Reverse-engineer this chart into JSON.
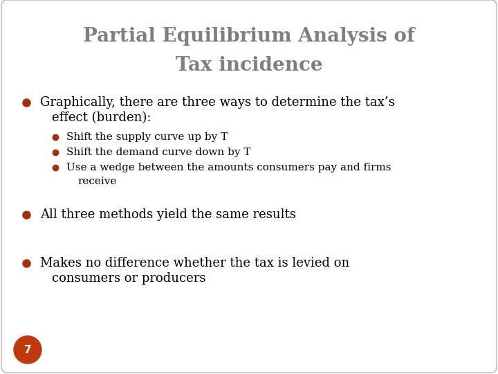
{
  "title_line1": "Partial Equilibrium Analysis of",
  "title_line2": "Tax incidence",
  "title_color": "#7f7f7f",
  "background_color": "#ffffff",
  "border_color": "#c0c0c0",
  "bullet_color": "#a0320a",
  "text_color": "#000000",
  "slide_number": "7",
  "slide_number_bg": "#c0390f",
  "slide_number_text_color": "#ffffff",
  "bullet1_text1": "Graphically, there are three ways to determine the tax’s",
  "bullet1_text2": "effect (burden):",
  "sub_bullet1": "Shift the supply curve up by T",
  "sub_bullet2": "Shift the demand curve down by T",
  "sub_bullet3_line1": "Use a wedge between the amounts consumers pay and firms",
  "sub_bullet3_line2": "receive",
  "bullet2": "All three methods yield the same results",
  "bullet3_line1": "Makes no difference whether the tax is levied on",
  "bullet3_line2": "consumers or producers",
  "title_fontsize": 20,
  "body_fontsize": 13,
  "sub_fontsize": 11,
  "slide_num_fontsize": 11
}
